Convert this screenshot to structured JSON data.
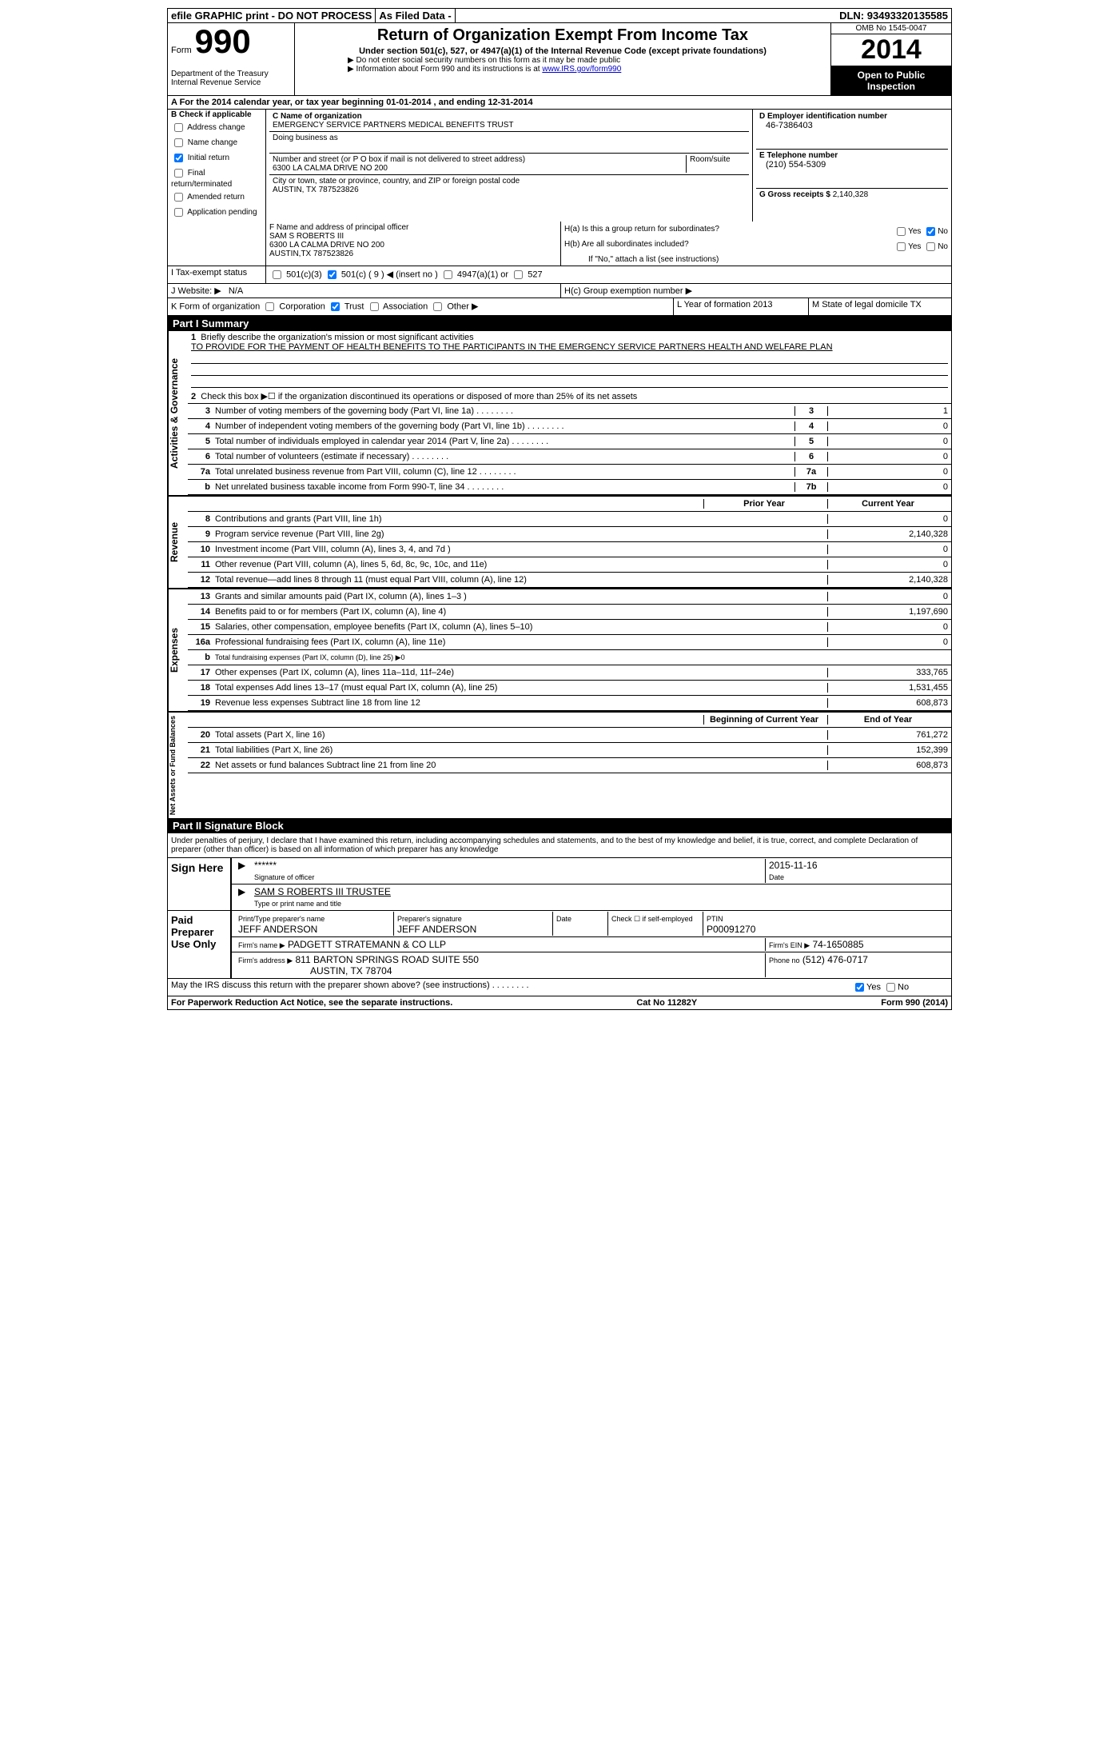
{
  "topbar": {
    "efile": "efile GRAPHIC print - DO NOT PROCESS",
    "asfiled": "As Filed Data -",
    "dln_label": "DLN:",
    "dln": "93493320135585"
  },
  "header": {
    "form_word": "Form",
    "form_num": "990",
    "dept": "Department of the Treasury\nInternal Revenue Service",
    "title": "Return of Organization Exempt From Income Tax",
    "subtitle": "Under section 501(c), 527, or 4947(a)(1) of the Internal Revenue Code (except private foundations)",
    "note1": "▶ Do not enter social security numbers on this form as it may be made public",
    "note2": "▶ Information about Form 990 and its instructions is at ",
    "note2_link": "www.IRS.gov/form990",
    "omb": "OMB No 1545-0047",
    "year": "2014",
    "open": "Open to Public\nInspection"
  },
  "sectionA": "A For the 2014 calendar year, or tax year beginning 01-01-2014    , and ending 12-31-2014",
  "checkB": {
    "label": "B  Check if applicable",
    "address": "Address change",
    "name": "Name change",
    "initial": "Initial return",
    "final": "Final return/terminated",
    "amended": "Amended return",
    "application": "Application pending"
  },
  "C": {
    "label": "C Name of organization",
    "name": "EMERGENCY SERVICE PARTNERS MEDICAL BENEFITS TRUST",
    "dba_label": "Doing business as",
    "addr_label": "Number and street (or P O  box if mail is not delivered to street address)",
    "room_label": "Room/suite",
    "addr": "6300 LA CALMA DRIVE NO 200",
    "city_label": "City or town, state or province, country, and ZIP or foreign postal code",
    "city": "AUSTIN, TX  787523826"
  },
  "D": {
    "label": "D Employer identification number",
    "val": "46-7386403"
  },
  "E": {
    "label": "E Telephone number",
    "val": "(210) 554-5309"
  },
  "G": {
    "label": "G Gross receipts $",
    "val": "2,140,328"
  },
  "F": {
    "label": "F  Name and address of principal officer",
    "name": "SAM S ROBERTS III",
    "addr1": "6300 LA CALMA DRIVE NO 200",
    "addr2": "AUSTIN,TX 787523826"
  },
  "H": {
    "a": "H(a)  Is this a group return for subordinates?",
    "b": "H(b)  Are all subordinates included?",
    "note": "If \"No,\" attach a list  (see instructions)",
    "c": "H(c)  Group exemption number ▶",
    "yes": "Yes",
    "no": "No"
  },
  "I": {
    "label": "I  Tax-exempt status",
    "opt1": "501(c)(3)",
    "opt2": "501(c) ( 9 ) ◀ (insert no )",
    "opt3": "4947(a)(1) or",
    "opt4": "527"
  },
  "J": {
    "label": "J  Website: ▶",
    "val": "N/A"
  },
  "K": {
    "label": "K Form of organization",
    "corp": "Corporation",
    "trust": "Trust",
    "assoc": "Association",
    "other": "Other ▶"
  },
  "L": {
    "label": "L Year of formation",
    "val": "2013"
  },
  "M": {
    "label": "M State of legal domicile",
    "val": "TX"
  },
  "part1": "Part I    Summary",
  "summary": {
    "q1_label": "1",
    "q1": "Briefly describe the organization's mission or most significant activities",
    "q1_text": "TO PROVIDE FOR THE PAYMENT OF HEALTH BENEFITS TO THE PARTICIPANTS IN THE EMERGENCY SERVICE PARTNERS HEALTH AND WELFARE PLAN",
    "q2_label": "2",
    "q2": "Check this box ▶☐ if the organization discontinued its operations or disposed of more than 25% of its net assets",
    "rows_gov": [
      {
        "n": "3",
        "d": "Number of voting members of the governing body (Part VI, line 1a)",
        "box": "3",
        "v": "1"
      },
      {
        "n": "4",
        "d": "Number of independent voting members of the governing body (Part VI, line 1b)",
        "box": "4",
        "v": "0"
      },
      {
        "n": "5",
        "d": "Total number of individuals employed in calendar year 2014 (Part V, line 2a)",
        "box": "5",
        "v": "0"
      },
      {
        "n": "6",
        "d": "Total number of volunteers (estimate if necessary)",
        "box": "6",
        "v": "0"
      },
      {
        "n": "7a",
        "d": "Total unrelated business revenue from Part VIII, column (C), line 12",
        "box": "7a",
        "v": "0"
      },
      {
        "n": "b",
        "d": "Net unrelated business taxable income from Form 990-T, line 34",
        "box": "7b",
        "v": "0"
      }
    ],
    "head_prior": "Prior Year",
    "head_curr": "Current Year",
    "rows_rev": [
      {
        "n": "8",
        "d": "Contributions and grants (Part VIII, line 1h)",
        "p": "",
        "c": "0"
      },
      {
        "n": "9",
        "d": "Program service revenue (Part VIII, line 2g)",
        "p": "",
        "c": "2,140,328"
      },
      {
        "n": "10",
        "d": "Investment income (Part VIII, column (A), lines 3, 4, and 7d )",
        "p": "",
        "c": "0"
      },
      {
        "n": "11",
        "d": "Other revenue (Part VIII, column (A), lines 5, 6d, 8c, 9c, 10c, and 11e)",
        "p": "",
        "c": "0"
      },
      {
        "n": "12",
        "d": "Total revenue—add lines 8 through 11 (must equal Part VIII, column (A), line 12)",
        "p": "",
        "c": "2,140,328"
      }
    ],
    "rows_exp": [
      {
        "n": "13",
        "d": "Grants and similar amounts paid (Part IX, column (A), lines 1–3 )",
        "p": "",
        "c": "0"
      },
      {
        "n": "14",
        "d": "Benefits paid to or for members (Part IX, column (A), line 4)",
        "p": "",
        "c": "1,197,690"
      },
      {
        "n": "15",
        "d": "Salaries, other compensation, employee benefits (Part IX, column (A), lines 5–10)",
        "p": "",
        "c": "0"
      },
      {
        "n": "16a",
        "d": "Professional fundraising fees (Part IX, column (A), line 11e)",
        "p": "",
        "c": "0"
      },
      {
        "n": "b",
        "d": "Total fundraising expenses (Part IX, column (D), line 25) ▶0",
        "p": "shaded",
        "c": "shaded"
      },
      {
        "n": "17",
        "d": "Other expenses (Part IX, column (A), lines 11a–11d, 11f–24e)",
        "p": "",
        "c": "333,765"
      },
      {
        "n": "18",
        "d": "Total expenses  Add lines 13–17 (must equal Part IX, column (A), line 25)",
        "p": "",
        "c": "1,531,455"
      },
      {
        "n": "19",
        "d": "Revenue less expenses  Subtract line 18 from line 12",
        "p": "",
        "c": "608,873"
      }
    ],
    "head_begin": "Beginning of Current Year",
    "head_end": "End of Year",
    "rows_net": [
      {
        "n": "20",
        "d": "Total assets (Part X, line 16)",
        "p": "",
        "c": "761,272"
      },
      {
        "n": "21",
        "d": "Total liabilities (Part X, line 26)",
        "p": "",
        "c": "152,399"
      },
      {
        "n": "22",
        "d": "Net assets or fund balances  Subtract line 21 from line 20",
        "p": "",
        "c": "608,873"
      }
    ],
    "vlabels": {
      "gov": "Activities & Governance",
      "rev": "Revenue",
      "exp": "Expenses",
      "net": "Net Assets or Fund Balances"
    }
  },
  "part2": "Part II    Signature Block",
  "perjury": "Under penalties of perjury, I declare that I have examined this return, including accompanying schedules and statements, and to the best of my knowledge and belief, it is true, correct, and complete  Declaration of preparer (other than officer) is based on all information of which preparer has any knowledge",
  "sign": {
    "label": "Sign Here",
    "stars": "******",
    "sig_of": "Signature of officer",
    "date": "2015-11-16",
    "date_label": "Date",
    "name": "SAM S ROBERTS III TRUSTEE",
    "name_label": "Type or print name and title"
  },
  "preparer": {
    "label": "Paid Preparer Use Only",
    "name_label": "Print/Type preparer's name",
    "name": "JEFF ANDERSON",
    "sig_label": "Preparer's signature",
    "sig": "JEFF ANDERSON",
    "date_label": "Date",
    "check_label": "Check ☐ if self-employed",
    "ptin_label": "PTIN",
    "ptin": "P00091270",
    "firm_label": "Firm's name    ▶",
    "firm": "PADGETT STRATEMANN & CO LLP",
    "ein_label": "Firm's EIN ▶",
    "ein": "74-1650885",
    "addr_label": "Firm's address ▶",
    "addr1": "811 BARTON SPRINGS ROAD SUITE 550",
    "addr2": "AUSTIN, TX  78704",
    "phone_label": "Phone no",
    "phone": "(512) 476-0717"
  },
  "discuss": "May the IRS discuss this return with the preparer shown above? (see instructions)",
  "discuss_yes": "Yes",
  "discuss_no": "No",
  "footer": {
    "left": "For Paperwork Reduction Act Notice, see the separate instructions.",
    "mid": "Cat No 11282Y",
    "right": "Form 990 (2014)"
  }
}
